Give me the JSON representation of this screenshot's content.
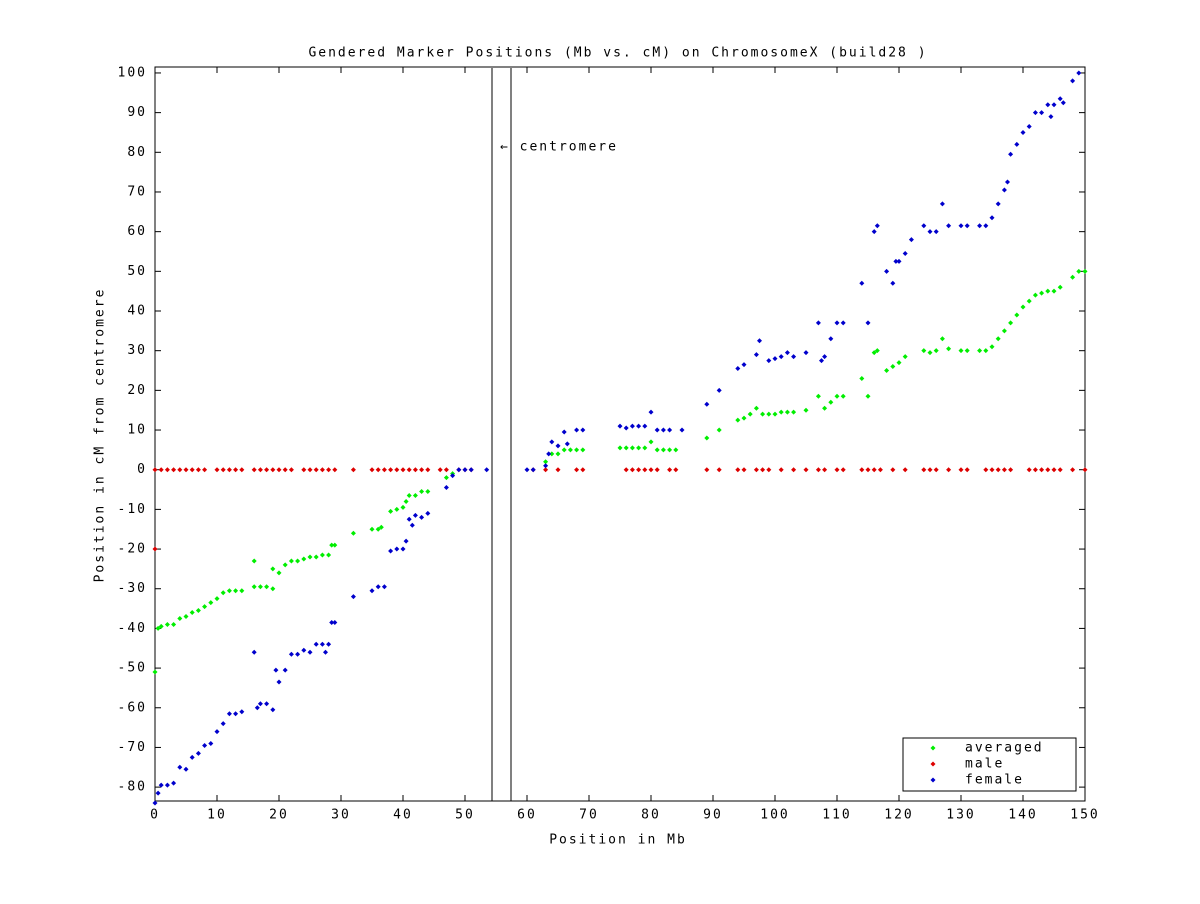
{
  "chart_data": {
    "type": "scatter",
    "title": "Gendered Marker Positions (Mb vs. cM) on ChromosomeX (build28 )",
    "x_label": "Position in Mb",
    "y_label": "Position in cM from centromere",
    "annotation": "← centromere",
    "xlim": [
      0,
      150
    ],
    "ylim": [
      -83.5,
      101.5
    ],
    "xticks": [
      0,
      10,
      20,
      30,
      40,
      50,
      60,
      70,
      80,
      90,
      100,
      110,
      120,
      130,
      140,
      150
    ],
    "yticks": [
      -80,
      -70,
      -60,
      -50,
      -40,
      -30,
      -20,
      -10,
      0,
      10,
      20,
      30,
      40,
      50,
      60,
      70,
      80,
      90,
      100
    ],
    "legend": "lower right",
    "series": [
      {
        "name": "averaged",
        "color": "#00ee00",
        "x": [
          0,
          0.5,
          1,
          2,
          3,
          4,
          5,
          6,
          7,
          8,
          9,
          10,
          11,
          12,
          13,
          14,
          16,
          16,
          17,
          18,
          19,
          19,
          20,
          21,
          22,
          23,
          24,
          25,
          26,
          27,
          28,
          28.5,
          29,
          32,
          35,
          36,
          36.5,
          38,
          39,
          40,
          40.5,
          41,
          42,
          43,
          44,
          47,
          48,
          63,
          64,
          65,
          66,
          67,
          68,
          69,
          75,
          76,
          77,
          78,
          79,
          80,
          81,
          82,
          83,
          84,
          89,
          91,
          94,
          95,
          96,
          97,
          98,
          99,
          100,
          101,
          102,
          103,
          105,
          107,
          108,
          109,
          110,
          111,
          114,
          115,
          116,
          116.5,
          118,
          119,
          120,
          121,
          124,
          125,
          126,
          127,
          128,
          130,
          131,
          133,
          134,
          135,
          136,
          137,
          138,
          139,
          140,
          141,
          142,
          143,
          144,
          145,
          146,
          148,
          149,
          150
        ],
        "values": [
          -51,
          -40,
          -39.5,
          -39,
          -39,
          -37.5,
          -37,
          -36,
          -35.5,
          -34.5,
          -33.5,
          -32.5,
          -31,
          -30.5,
          -30.5,
          -30.5,
          -23,
          -29.5,
          -29.5,
          -29.5,
          -30,
          -25,
          -26,
          -24,
          -23,
          -23,
          -22.5,
          -22,
          -22,
          -21.5,
          -21.5,
          -19,
          -19,
          -16,
          -15,
          -15,
          -14.5,
          -10.5,
          -10,
          -9.5,
          -8,
          -6.5,
          -6.5,
          -5.5,
          -5.5,
          -2,
          -1,
          2,
          4,
          4,
          5,
          5,
          5,
          5,
          5.5,
          5.5,
          5.5,
          5.5,
          5.5,
          7,
          5,
          5,
          5,
          5,
          8,
          10,
          12.5,
          13,
          14,
          15.5,
          14,
          14,
          14,
          14.5,
          14.5,
          14.5,
          15,
          18.5,
          15.5,
          17,
          18.5,
          18.5,
          23,
          18.5,
          29.5,
          30,
          25,
          26,
          27,
          28.5,
          30,
          29.5,
          30,
          33,
          30.5,
          30,
          30,
          30,
          30,
          31,
          33,
          35,
          37,
          39,
          41,
          42.5,
          44,
          44.5,
          45,
          45,
          46,
          48.5,
          50,
          50
        ]
      },
      {
        "name": "male",
        "color": "#dd0000",
        "x": [
          0,
          0,
          1,
          2,
          3,
          4,
          5,
          6,
          7,
          8,
          10,
          11,
          12,
          13,
          14,
          16,
          17,
          18,
          19,
          20,
          21,
          22,
          24,
          25,
          26,
          27,
          28,
          29,
          32,
          35,
          36,
          37,
          38,
          39,
          40,
          41,
          42,
          43,
          44,
          46,
          47,
          49,
          50,
          51,
          61,
          63,
          65,
          68,
          69,
          76,
          77,
          78,
          79,
          80,
          81,
          83,
          84,
          89,
          91,
          94,
          95,
          97,
          98,
          99,
          101,
          103,
          105,
          107,
          108,
          110,
          111,
          114,
          115,
          116,
          117,
          119,
          121,
          124,
          125,
          126,
          128,
          130,
          131,
          134,
          135,
          136,
          137,
          138,
          141,
          142,
          143,
          144,
          145,
          146,
          148,
          150
        ],
        "values": [
          -20,
          0,
          0,
          0,
          0,
          0,
          0,
          0,
          0,
          0,
          0,
          0,
          0,
          0,
          0,
          0,
          0,
          0,
          0,
          0,
          0,
          0,
          0,
          0,
          0,
          0,
          0,
          0,
          0,
          0,
          0,
          0,
          0,
          0,
          0,
          0,
          0,
          0,
          0,
          0,
          0,
          0,
          0,
          0,
          0,
          0,
          0,
          0,
          0,
          0,
          0,
          0,
          0,
          0,
          0,
          0,
          0,
          0,
          0,
          0,
          0,
          0,
          0,
          0,
          0,
          0,
          0,
          0,
          0,
          0,
          0,
          0,
          0,
          0,
          0,
          0,
          0,
          0,
          0,
          0,
          0,
          0,
          0,
          0,
          0,
          0,
          0,
          0,
          0,
          0,
          0,
          0,
          0,
          0,
          0,
          0
        ]
      },
      {
        "name": "female",
        "color": "#0000cc",
        "x": [
          0,
          0.5,
          1,
          2,
          3,
          4,
          5,
          6,
          7,
          8,
          9,
          10,
          11,
          12,
          13,
          14,
          16,
          16.5,
          17,
          18,
          19,
          19.5,
          20,
          21,
          22,
          23,
          24,
          25,
          26,
          27,
          27.5,
          28,
          28.5,
          29,
          32,
          35,
          36,
          37,
          38,
          39,
          40,
          40.5,
          41,
          41.5,
          42,
          43,
          44,
          47,
          48,
          49,
          50,
          51,
          53.5,
          60,
          61,
          63,
          63.5,
          64,
          65,
          66,
          66.5,
          68,
          69,
          75,
          76,
          77,
          78,
          79,
          80,
          81,
          82,
          83,
          85,
          89,
          91,
          94,
          95,
          97,
          97.5,
          99,
          100,
          101,
          102,
          103,
          105,
          107,
          107.5,
          108,
          109,
          110,
          111,
          114,
          115,
          116,
          116.5,
          118,
          119,
          119.5,
          120,
          121,
          122,
          124,
          125,
          126,
          127,
          128,
          130,
          131,
          133,
          134,
          135,
          136,
          137,
          137.5,
          138,
          139,
          140,
          141,
          142,
          143,
          144,
          144.5,
          145,
          146,
          146.5,
          148,
          149
        ],
        "values": [
          -84,
          -81.5,
          -79.5,
          -79.5,
          -79,
          -75,
          -75.5,
          -72.5,
          -71.5,
          -69.5,
          -69,
          -66,
          -64,
          -61.5,
          -61.5,
          -61,
          -46,
          -60,
          -59,
          -59,
          -60.5,
          -50.5,
          -53.5,
          -50.5,
          -46.5,
          -46.5,
          -45.5,
          -46,
          -44,
          -44,
          -46,
          -44,
          -38.5,
          -38.5,
          -32,
          -30.5,
          -29.5,
          -29.5,
          -20.5,
          -20,
          -20,
          -18,
          -12.5,
          -14,
          -11.5,
          -12,
          -11,
          -4.5,
          -1.5,
          0,
          0,
          0,
          0,
          0,
          0,
          1,
          4,
          7,
          6,
          9.5,
          6.5,
          10,
          10,
          11,
          10.5,
          11,
          11,
          11,
          14.5,
          10,
          10,
          10,
          10,
          16.5,
          20,
          25.5,
          26.5,
          29,
          32.5,
          27.5,
          28,
          28.5,
          29.5,
          28.5,
          29.5,
          37,
          27.5,
          28.5,
          33,
          37,
          37,
          47,
          37,
          60,
          61.5,
          50,
          47,
          52.5,
          52.5,
          54.5,
          58,
          61.5,
          60,
          60,
          67,
          61.5,
          61.5,
          61.5,
          61.5,
          61.5,
          63.5,
          67,
          70.5,
          72.5,
          79.5,
          82,
          85,
          86.5,
          90,
          90,
          92,
          89,
          92,
          93.5,
          92.5,
          98,
          100
        ]
      }
    ]
  }
}
